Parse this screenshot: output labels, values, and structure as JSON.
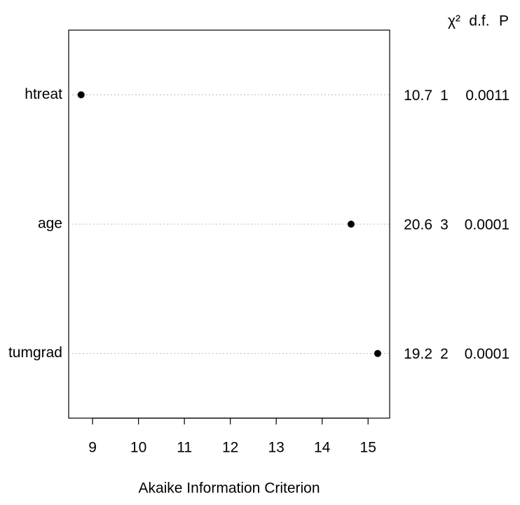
{
  "chart_data": {
    "type": "dot",
    "x_label": "Akaike Information Criterion",
    "categories": [
      "htreat",
      "age",
      "tumgrad"
    ],
    "values": [
      8.75,
      14.63,
      15.21
    ],
    "color": "#000000",
    "xlim": [
      8.48,
      15.47
    ],
    "xticks": [
      9,
      10,
      11,
      12,
      13,
      14,
      15
    ],
    "grid": true,
    "table_headers": [
      "χ²",
      "d.f.",
      "P"
    ],
    "table_columns": [
      [
        10.7,
        20.6,
        19.2
      ],
      [
        1,
        3,
        2
      ],
      [
        0.0011,
        0.0001,
        0.0001
      ]
    ]
  }
}
